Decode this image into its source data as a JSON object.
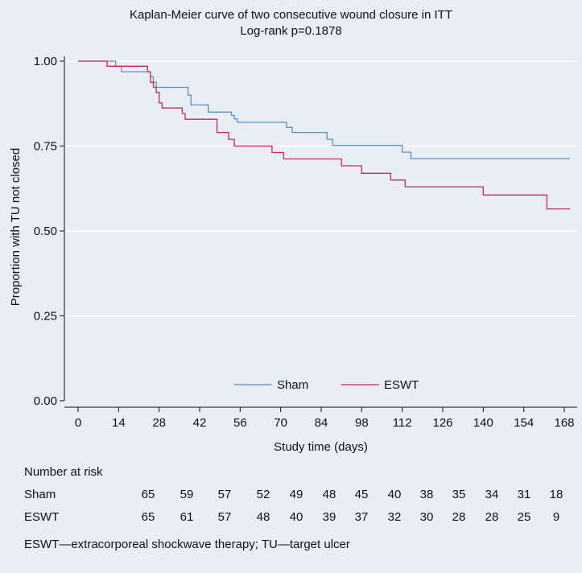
{
  "chart_data": {
    "type": "line",
    "subtype": "kaplan-meier step",
    "title": "Kaplan-Meier curve of two consecutive wound closure in ITT",
    "subtitle": "Log-rank p=0.1878",
    "xlabel": "Study time (days)",
    "ylabel": "Proportion with TU not closed",
    "xlim": [
      0,
      170
    ],
    "ylim": [
      0,
      1
    ],
    "x_ticks": [
      0,
      14,
      28,
      42,
      56,
      70,
      84,
      98,
      112,
      126,
      140,
      154,
      168
    ],
    "x_tick_labels": [
      "0",
      "14",
      "28",
      "42",
      "56",
      "70",
      "84",
      "98",
      "112",
      "126",
      "140",
      "154",
      "168"
    ],
    "y_ticks": [
      0,
      0.25,
      0.5,
      0.75,
      1
    ],
    "y_tick_labels": [
      "0.00",
      "0.25",
      "0.50",
      "0.75",
      "1.00"
    ],
    "grid": "horizontal",
    "legend_position": "bottom-center",
    "series": [
      {
        "name": "Sham",
        "color": "#5b8fc7",
        "points": [
          [
            0,
            1
          ],
          [
            13,
            1
          ],
          [
            13,
            0.985
          ],
          [
            15,
            0.985
          ],
          [
            15,
            0.969
          ],
          [
            25,
            0.969
          ],
          [
            25,
            0.954
          ],
          [
            26,
            0.954
          ],
          [
            26,
            0.938
          ],
          [
            27,
            0.938
          ],
          [
            27,
            0.923
          ],
          [
            38,
            0.923
          ],
          [
            38,
            0.9
          ],
          [
            39,
            0.9
          ],
          [
            39,
            0.871
          ],
          [
            45,
            0.871
          ],
          [
            45,
            0.85
          ],
          [
            53,
            0.85
          ],
          [
            53,
            0.84
          ],
          [
            54,
            0.84
          ],
          [
            54,
            0.83
          ],
          [
            55,
            0.83
          ],
          [
            55,
            0.82
          ],
          [
            72,
            0.82
          ],
          [
            72,
            0.805
          ],
          [
            74,
            0.805
          ],
          [
            74,
            0.79
          ],
          [
            86,
            0.79
          ],
          [
            86,
            0.77
          ],
          [
            88,
            0.77
          ],
          [
            88,
            0.752
          ],
          [
            112,
            0.752
          ],
          [
            112,
            0.732
          ],
          [
            115,
            0.732
          ],
          [
            115,
            0.713
          ],
          [
            170,
            0.713
          ]
        ]
      },
      {
        "name": "ESWT",
        "color": "#c8285e",
        "points": [
          [
            0,
            1
          ],
          [
            10,
            1
          ],
          [
            10,
            0.985
          ],
          [
            24,
            0.985
          ],
          [
            24,
            0.969
          ],
          [
            25,
            0.969
          ],
          [
            25,
            0.938
          ],
          [
            26,
            0.938
          ],
          [
            26,
            0.923
          ],
          [
            27,
            0.923
          ],
          [
            27,
            0.908
          ],
          [
            28,
            0.908
          ],
          [
            28,
            0.877
          ],
          [
            29,
            0.877
          ],
          [
            29,
            0.862
          ],
          [
            36,
            0.862
          ],
          [
            36,
            0.846
          ],
          [
            37,
            0.846
          ],
          [
            37,
            0.829
          ],
          [
            48,
            0.829
          ],
          [
            48,
            0.79
          ],
          [
            52,
            0.79
          ],
          [
            52,
            0.77
          ],
          [
            54,
            0.77
          ],
          [
            54,
            0.75
          ],
          [
            67,
            0.75
          ],
          [
            67,
            0.731
          ],
          [
            71,
            0.731
          ],
          [
            71,
            0.712
          ],
          [
            91,
            0.712
          ],
          [
            91,
            0.692
          ],
          [
            98,
            0.692
          ],
          [
            98,
            0.67
          ],
          [
            108,
            0.67
          ],
          [
            108,
            0.65
          ],
          [
            113,
            0.65
          ],
          [
            113,
            0.63
          ],
          [
            140,
            0.63
          ],
          [
            140,
            0.606
          ],
          [
            162,
            0.606
          ],
          [
            162,
            0.565
          ],
          [
            170,
            0.565
          ]
        ]
      }
    ],
    "risk_table": {
      "heading": "Number at risk",
      "times": [
        0,
        14,
        28,
        42,
        56,
        70,
        84,
        98,
        112,
        126,
        140,
        154,
        168
      ],
      "rows": [
        {
          "label": "Sham",
          "values": [
            "65",
            "59",
            "57",
            "52",
            "49",
            "48",
            "45",
            "40",
            "38",
            "35",
            "34",
            "31",
            "18"
          ]
        },
        {
          "label": "ESWT",
          "values": [
            "65",
            "61",
            "57",
            "48",
            "40",
            "39",
            "37",
            "32",
            "30",
            "28",
            "28",
            "25",
            "9"
          ]
        }
      ]
    },
    "footnote": "ESWT—extracorporeal shockwave therapy; TU—target ulcer"
  }
}
